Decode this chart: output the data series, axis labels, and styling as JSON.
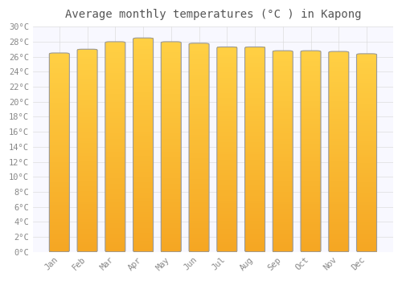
{
  "months": [
    "Jan",
    "Feb",
    "Mar",
    "Apr",
    "May",
    "Jun",
    "Jul",
    "Aug",
    "Sep",
    "Oct",
    "Nov",
    "Dec"
  ],
  "values": [
    26.5,
    27.0,
    28.0,
    28.5,
    28.0,
    27.8,
    27.3,
    27.3,
    26.8,
    26.8,
    26.7,
    26.4
  ],
  "title": "Average monthly temperatures (°C ) in Kapong",
  "ylim": [
    0,
    30
  ],
  "ytick_step": 2,
  "bar_color_bottom": "#F5A623",
  "bar_color_top": "#FFD044",
  "bar_edge_color": "#999999",
  "background_color": "#FFFFFF",
  "plot_bg_color": "#F8F8FF",
  "grid_color": "#DDDDDD",
  "title_fontsize": 10,
  "tick_fontsize": 7.5
}
